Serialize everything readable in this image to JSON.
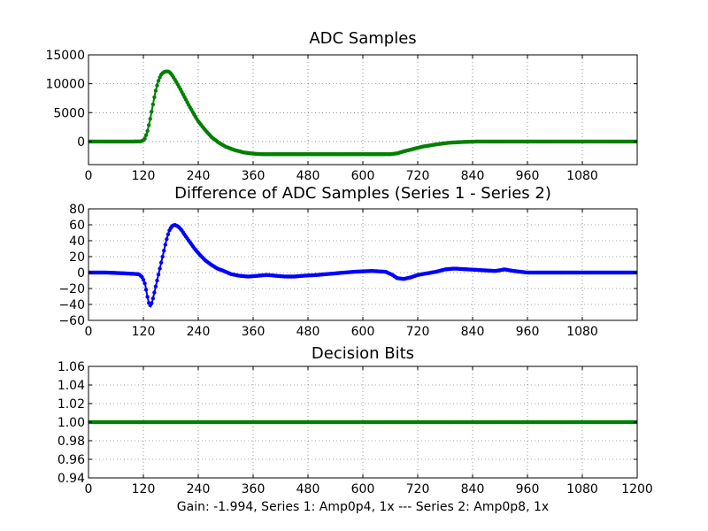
{
  "figure": {
    "xlabel": "Gain: -1.994, Series 1: Amp0p4, 1x --- Series 2: Amp0p8, 1x"
  },
  "chart_data": [
    {
      "type": "line",
      "title": "ADC Samples",
      "xlim": [
        0,
        1200
      ],
      "ylim": [
        -4000,
        15000
      ],
      "xticks": [
        0,
        120,
        240,
        360,
        480,
        600,
        720,
        840,
        960,
        1080
      ],
      "xtick_labels": [
        "0",
        "120",
        "240",
        "360",
        "480",
        "600",
        "720",
        "840",
        "960",
        "1080"
      ],
      "yticks": [
        0,
        5000,
        10000,
        15000
      ],
      "ytick_labels": [
        "0",
        "5000",
        "10000",
        "15000"
      ],
      "grid": true,
      "series": [
        {
          "name": "ADC samples",
          "color": "#008000",
          "marker": "dot",
          "x": [
            0,
            100,
            115,
            122,
            128,
            134,
            140,
            146,
            152,
            158,
            164,
            170,
            176,
            182,
            190,
            200,
            210,
            220,
            230,
            240,
            255,
            270,
            285,
            300,
            320,
            340,
            360,
            380,
            420,
            480,
            540,
            600,
            660,
            675,
            690,
            710,
            730,
            760,
            790,
            820,
            850,
            900,
            960,
            1020,
            1080,
            1200
          ],
          "y": [
            0,
            0,
            20,
            300,
            1500,
            3500,
            6000,
            8500,
            10300,
            11500,
            12000,
            12150,
            12100,
            11600,
            10600,
            9200,
            7700,
            6200,
            4800,
            3500,
            2000,
            700,
            -200,
            -900,
            -1500,
            -1900,
            -2100,
            -2200,
            -2200,
            -2200,
            -2200,
            -2200,
            -2200,
            -2050,
            -1700,
            -1300,
            -900,
            -500,
            -200,
            -80,
            0,
            0,
            0,
            0,
            0,
            0
          ]
        }
      ]
    },
    {
      "type": "line",
      "title": "Difference of ADC Samples (Series 1 - Series 2)",
      "xlim": [
        0,
        1200
      ],
      "ylim": [
        -60,
        80
      ],
      "xticks": [
        0,
        120,
        240,
        360,
        480,
        600,
        720,
        840,
        960,
        1080
      ],
      "xtick_labels": [
        "0",
        "120",
        "240",
        "360",
        "480",
        "600",
        "720",
        "840",
        "960",
        "1080"
      ],
      "yticks": [
        -60,
        -40,
        -20,
        0,
        20,
        40,
        60,
        80
      ],
      "ytick_labels": [
        "−60",
        "−40",
        "−20",
        "0",
        "20",
        "40",
        "60",
        "80"
      ],
      "grid": true,
      "series": [
        {
          "name": "Series 1 - Series 2",
          "color": "#0000ff",
          "marker": "dot",
          "x": [
            0,
            40,
            80,
            110,
            118,
            124,
            128,
            132,
            136,
            140,
            146,
            152,
            158,
            164,
            170,
            176,
            182,
            188,
            196,
            204,
            212,
            222,
            232,
            244,
            256,
            268,
            282,
            296,
            312,
            330,
            350,
            370,
            390,
            410,
            430,
            450,
            470,
            500,
            540,
            580,
            620,
            650,
            665,
            675,
            690,
            705,
            720,
            740,
            760,
            780,
            800,
            830,
            860,
            890,
            910,
            930,
            960,
            1000,
            1050,
            1100,
            1200
          ],
          "y": [
            0,
            0,
            -1,
            -2,
            -6,
            -15,
            -28,
            -38,
            -42,
            -35,
            -20,
            -5,
            10,
            25,
            40,
            52,
            58,
            60,
            58,
            53,
            46,
            38,
            30,
            22,
            15,
            10,
            5,
            2,
            -2,
            -4,
            -5,
            -4,
            -3,
            -4,
            -5,
            -5,
            -4,
            -3,
            -1,
            1,
            2,
            1,
            -3,
            -7,
            -8,
            -6,
            -3,
            -1,
            1,
            4,
            5,
            4,
            3,
            2,
            4,
            2,
            0,
            0,
            0,
            0,
            0
          ]
        }
      ]
    },
    {
      "type": "line",
      "title": "Decision Bits",
      "xlim": [
        0,
        1200
      ],
      "ylim": [
        0.94,
        1.06
      ],
      "xticks": [
        0,
        120,
        240,
        360,
        480,
        600,
        720,
        840,
        960,
        1080,
        1200
      ],
      "xtick_labels": [
        "0",
        "120",
        "240",
        "360",
        "480",
        "600",
        "720",
        "840",
        "960",
        "1080",
        "1200"
      ],
      "yticks": [
        0.94,
        0.96,
        0.98,
        1.0,
        1.02,
        1.04,
        1.06
      ],
      "ytick_labels": [
        "0.94",
        "0.96",
        "0.98",
        "1.00",
        "1.02",
        "1.04",
        "1.06"
      ],
      "grid": true,
      "series": [
        {
          "name": "Decision bits",
          "color": "#008000",
          "marker": "dot",
          "x": [
            0,
            1200
          ],
          "y": [
            1.0,
            1.0
          ]
        }
      ]
    }
  ]
}
